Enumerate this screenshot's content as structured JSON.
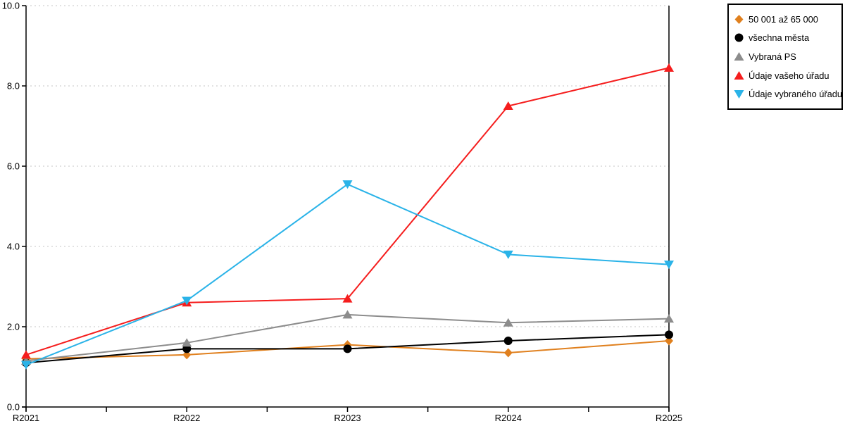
{
  "chart_data": {
    "type": "line",
    "title": "",
    "xlabel": "",
    "ylabel": "",
    "x_categories": [
      "R2021",
      "R2022",
      "R2023",
      "R2024",
      "R2025"
    ],
    "ylim": [
      0,
      10
    ],
    "y_ticks": [
      0,
      2,
      4,
      6,
      8,
      10
    ],
    "y_tick_labels": [
      "0.0",
      "2.0",
      "4.0",
      "6.0",
      "8.0",
      "10.0"
    ],
    "grid": "horizontal dashed lines at each y tick",
    "legend_position": "outside top-right",
    "series": [
      {
        "name": "50 001 až 65 000",
        "marker": "diamond",
        "color": "#E0801E",
        "values": [
          1.2,
          1.3,
          1.55,
          1.35,
          1.65
        ]
      },
      {
        "name": "všechna města",
        "marker": "circle",
        "color": "#000000",
        "values": [
          1.1,
          1.45,
          1.45,
          1.65,
          1.8
        ]
      },
      {
        "name": "Vybraná PS",
        "marker": "triangle-up",
        "color": "#8C8C8C",
        "values": [
          1.15,
          1.6,
          2.3,
          2.1,
          2.2
        ]
      },
      {
        "name": "Údaje vašeho úřadu",
        "marker": "triangle-up",
        "color": "#F51D1D",
        "values": [
          1.3,
          2.6,
          2.7,
          7.5,
          8.45
        ]
      },
      {
        "name": "Údaje vybraného úřadu",
        "marker": "triangle-down",
        "color": "#2AB3E8",
        "values": [
          1.05,
          2.65,
          5.55,
          3.8,
          3.55
        ]
      }
    ],
    "colors": {
      "grid": "#C6C6C6",
      "axis": "#000000",
      "background": "#FFFFFF"
    }
  }
}
